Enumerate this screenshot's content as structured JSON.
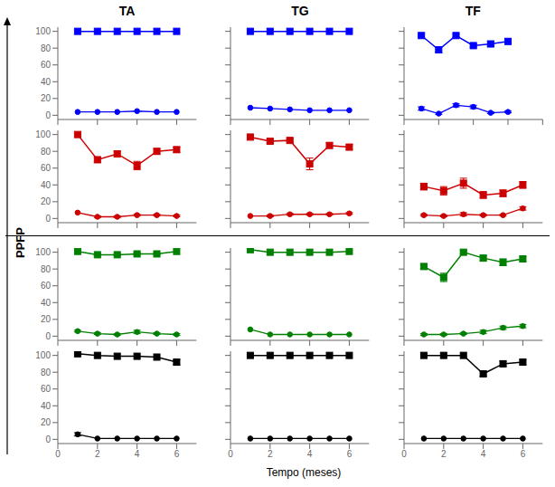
{
  "xlabel": "Tempo (meses)",
  "ylabel": "PPFP",
  "chart_data": [
    {
      "type": "line",
      "title": "TA",
      "x": [
        1,
        2,
        3,
        4,
        5,
        6
      ],
      "xlim": [
        0,
        7
      ],
      "xticks": [
        0,
        2,
        4,
        6
      ],
      "ylim": [
        -5,
        105
      ],
      "yticks": [
        0,
        20,
        40,
        60,
        80,
        100
      ],
      "tick_labels": "y",
      "series": [
        {
          "color": "#0000ff",
          "marker": "square",
          "values": [
            100,
            100,
            100,
            100,
            100,
            100
          ],
          "errors": [
            0,
            0,
            0,
            0,
            0,
            0
          ]
        },
        {
          "color": "#0000ff",
          "marker": "circle",
          "values": [
            4,
            4,
            4,
            5,
            4,
            4
          ],
          "errors": [
            0,
            0,
            0,
            0,
            0,
            0
          ]
        }
      ]
    },
    {
      "type": "line",
      "title": "TG",
      "x": [
        1,
        2,
        3,
        4,
        5,
        6
      ],
      "xlim": [
        0,
        7
      ],
      "xticks": [
        0,
        2,
        4,
        6
      ],
      "ylim": [
        -5,
        105
      ],
      "yticks": [
        0,
        20,
        40,
        60,
        80,
        100
      ],
      "tick_labels": false,
      "series": [
        {
          "color": "#0000ff",
          "marker": "square",
          "values": [
            100,
            100,
            100,
            100,
            100,
            100
          ],
          "errors": [
            0,
            0,
            0,
            0,
            0,
            0
          ]
        },
        {
          "color": "#0000ff",
          "marker": "circle",
          "values": [
            9,
            8,
            7,
            6,
            6,
            6
          ],
          "errors": [
            0,
            0,
            0,
            0,
            0,
            0
          ]
        }
      ]
    },
    {
      "type": "line",
      "title": "TF",
      "x": [
        1,
        2,
        3,
        4,
        5,
        6
      ],
      "xlim": [
        0,
        8
      ],
      "xticks": [
        0,
        2,
        4,
        6,
        8
      ],
      "ylim": [
        -5,
        105
      ],
      "yticks": [
        0,
        20,
        40,
        60,
        80,
        100
      ],
      "tick_labels": false,
      "series": [
        {
          "color": "#0000ff",
          "marker": "square",
          "values": [
            95,
            78,
            95,
            83,
            85,
            88
          ],
          "errors": [
            2,
            3,
            2,
            2,
            3,
            3
          ]
        },
        {
          "color": "#0000ff",
          "marker": "circle",
          "values": [
            8,
            2,
            12,
            10,
            3,
            4
          ],
          "errors": [
            2,
            1,
            2,
            2,
            1,
            1
          ]
        }
      ]
    },
    {
      "type": "line",
      "x": [
        1,
        2,
        3,
        4,
        5,
        6
      ],
      "xlim": [
        0,
        7
      ],
      "xticks": [
        0,
        2,
        4,
        6
      ],
      "ylim": [
        -5,
        105
      ],
      "yticks": [
        0,
        20,
        40,
        60,
        80,
        100
      ],
      "tick_labels": "y",
      "series": [
        {
          "color": "#cc0000",
          "marker": "square",
          "values": [
            100,
            70,
            77,
            63,
            80,
            82
          ],
          "errors": [
            0,
            3,
            3,
            5,
            3,
            3
          ]
        },
        {
          "color": "#cc0000",
          "marker": "circle",
          "values": [
            7,
            2,
            2,
            4,
            4,
            3
          ],
          "errors": [
            0,
            1,
            1,
            1,
            1,
            1
          ]
        }
      ]
    },
    {
      "type": "line",
      "x": [
        1,
        2,
        3,
        4,
        5,
        6
      ],
      "xlim": [
        0,
        7
      ],
      "xticks": [
        0,
        2,
        4,
        6
      ],
      "ylim": [
        -5,
        105
      ],
      "yticks": [
        0,
        20,
        40,
        60,
        80,
        100
      ],
      "tick_labels": false,
      "series": [
        {
          "color": "#cc0000",
          "marker": "square",
          "values": [
            97,
            92,
            93,
            65,
            87,
            85
          ],
          "errors": [
            0,
            2,
            2,
            7,
            3,
            3
          ]
        },
        {
          "color": "#cc0000",
          "marker": "circle",
          "values": [
            3,
            3,
            5,
            5,
            5,
            6
          ],
          "errors": [
            0,
            1,
            1,
            1,
            1,
            1
          ]
        }
      ]
    },
    {
      "type": "line",
      "x": [
        1,
        2,
        3,
        4,
        5,
        6
      ],
      "xlim": [
        0,
        7
      ],
      "xticks": [
        0,
        2,
        4,
        6
      ],
      "ylim": [
        -5,
        105
      ],
      "yticks": [
        0,
        20,
        40,
        60,
        80,
        100
      ],
      "tick_labels": false,
      "series": [
        {
          "color": "#cc0000",
          "marker": "square",
          "values": [
            38,
            33,
            42,
            28,
            30,
            40
          ],
          "errors": [
            4,
            5,
            6,
            4,
            4,
            4
          ]
        },
        {
          "color": "#cc0000",
          "marker": "circle",
          "values": [
            4,
            3,
            5,
            4,
            4,
            12
          ],
          "errors": [
            1,
            1,
            2,
            1,
            1,
            2
          ]
        }
      ]
    },
    {
      "type": "line",
      "x": [
        1,
        2,
        3,
        4,
        5,
        6
      ],
      "xlim": [
        0,
        7
      ],
      "xticks": [
        0,
        2,
        4,
        6
      ],
      "ylim": [
        -5,
        105
      ],
      "yticks": [
        0,
        20,
        40,
        60,
        80,
        100
      ],
      "tick_labels": "y",
      "series": [
        {
          "color": "#008000",
          "marker": "square",
          "values": [
            101,
            97,
            97,
            98,
            98,
            101
          ],
          "errors": [
            0,
            1,
            1,
            1,
            1,
            0
          ]
        },
        {
          "color": "#008000",
          "marker": "circle",
          "values": [
            6,
            3,
            2,
            5,
            3,
            2
          ],
          "errors": [
            1,
            1,
            1,
            2,
            1,
            1
          ]
        }
      ]
    },
    {
      "type": "line",
      "x": [
        1,
        2,
        3,
        4,
        5,
        6
      ],
      "xlim": [
        0,
        7
      ],
      "xticks": [
        0,
        2,
        4,
        6
      ],
      "ylim": [
        -5,
        105
      ],
      "yticks": [
        0,
        20,
        40,
        60,
        80,
        100
      ],
      "tick_labels": false,
      "series": [
        {
          "color": "#008000",
          "marker": "square",
          "values": [
            103,
            100,
            100,
            100,
            100,
            101
          ],
          "errors": [
            0,
            0,
            0,
            0,
            0,
            0
          ]
        },
        {
          "color": "#008000",
          "marker": "circle",
          "values": [
            8,
            2,
            2,
            2,
            2,
            2
          ],
          "errors": [
            0,
            0,
            0,
            0,
            0,
            0
          ]
        }
      ]
    },
    {
      "type": "line",
      "x": [
        1,
        2,
        3,
        4,
        5,
        6
      ],
      "xlim": [
        0,
        7
      ],
      "xticks": [
        0,
        2,
        4,
        6
      ],
      "ylim": [
        -5,
        105
      ],
      "yticks": [
        0,
        20,
        40,
        60,
        80,
        100
      ],
      "tick_labels": false,
      "series": [
        {
          "color": "#008000",
          "marker": "square",
          "values": [
            83,
            70,
            100,
            93,
            88,
            92
          ],
          "errors": [
            3,
            5,
            2,
            3,
            4,
            3
          ]
        },
        {
          "color": "#008000",
          "marker": "circle",
          "values": [
            2,
            2,
            3,
            5,
            10,
            12
          ],
          "errors": [
            1,
            1,
            1,
            2,
            2,
            2
          ]
        }
      ]
    },
    {
      "type": "line",
      "x": [
        1,
        2,
        3,
        4,
        5,
        6
      ],
      "xlim": [
        0,
        7
      ],
      "xticks": [
        0,
        2,
        4,
        6
      ],
      "ylim": [
        -5,
        105
      ],
      "yticks": [
        0,
        20,
        40,
        60,
        80,
        100
      ],
      "series": [
        {
          "color": "#000000",
          "marker": "square",
          "values": [
            102,
            100,
            99,
            99,
            98,
            92
          ],
          "errors": [
            0,
            0,
            0,
            0,
            0,
            3
          ]
        },
        {
          "color": "#000000",
          "marker": "circle",
          "values": [
            6,
            1,
            1,
            1,
            1,
            1
          ],
          "errors": [
            2,
            0,
            0,
            0,
            0,
            0
          ]
        }
      ]
    },
    {
      "type": "line",
      "x": [
        1,
        2,
        3,
        4,
        5,
        6
      ],
      "xlim": [
        0,
        7
      ],
      "xticks": [
        0,
        2,
        4,
        6
      ],
      "ylim": [
        -5,
        105
      ],
      "yticks": [
        0,
        20,
        40,
        60,
        80,
        100
      ],
      "tick_labels": "x",
      "series": [
        {
          "color": "#000000",
          "marker": "square",
          "values": [
            100,
            100,
            100,
            100,
            100,
            100
          ],
          "errors": [
            0,
            0,
            0,
            0,
            0,
            0
          ]
        },
        {
          "color": "#000000",
          "marker": "circle",
          "values": [
            1,
            1,
            1,
            1,
            1,
            1
          ],
          "errors": [
            0,
            0,
            0,
            0,
            0,
            0
          ]
        }
      ]
    },
    {
      "type": "line",
      "x": [
        1,
        2,
        3,
        4,
        5,
        6
      ],
      "xlim": [
        0,
        7
      ],
      "xticks": [
        0,
        2,
        4,
        6
      ],
      "ylim": [
        -5,
        105
      ],
      "yticks": [
        0,
        20,
        40,
        60,
        80,
        100
      ],
      "tick_labels": "x",
      "series": [
        {
          "color": "#000000",
          "marker": "square",
          "values": [
            100,
            100,
            100,
            78,
            90,
            92
          ],
          "errors": [
            0,
            0,
            0,
            3,
            3,
            3
          ]
        },
        {
          "color": "#000000",
          "marker": "circle",
          "values": [
            1,
            1,
            1,
            1,
            1,
            1
          ],
          "errors": [
            0,
            0,
            0,
            0,
            0,
            0
          ]
        }
      ]
    }
  ]
}
